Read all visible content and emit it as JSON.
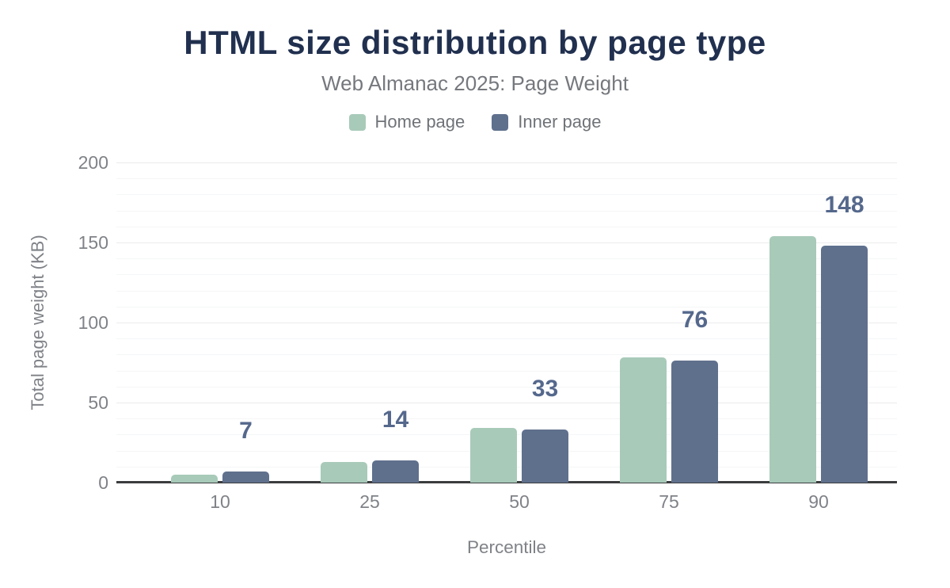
{
  "header": {
    "title": "HTML size distribution by page type",
    "subtitle": "Web Almanac 2025: Page Weight"
  },
  "chart_data": {
    "type": "bar",
    "title": "HTML size distribution by page type",
    "subtitle": "Web Almanac 2025: Page Weight",
    "categories": [
      "10",
      "25",
      "50",
      "75",
      "90"
    ],
    "series": [
      {
        "name": "Home page",
        "color": "#a8cab9",
        "values": [
          5,
          13,
          34,
          78,
          154
        ]
      },
      {
        "name": "Inner page",
        "color": "#5f708d",
        "values": [
          7,
          14,
          33,
          76,
          148
        ]
      }
    ],
    "data_labels": {
      "attached_series": "Inner page",
      "values": [
        "7",
        "14",
        "33",
        "76",
        "148"
      ],
      "color": "#55688c"
    },
    "xlabel": "Percentile",
    "ylabel": "Total page weight (KB)",
    "ylim": [
      0,
      200
    ],
    "yticks": [
      0,
      50,
      100,
      150,
      200
    ],
    "minor_grid_step": 10,
    "grid": true,
    "legend_position": "top"
  },
  "colors": {
    "title": "#21304f",
    "subtitle": "#75787d",
    "axis_text": "#7f8287",
    "axis_line": "#3b3c3e",
    "grid_major": "#ebebed",
    "grid_minor": "#f5f6f7",
    "background": "#ffffff"
  }
}
